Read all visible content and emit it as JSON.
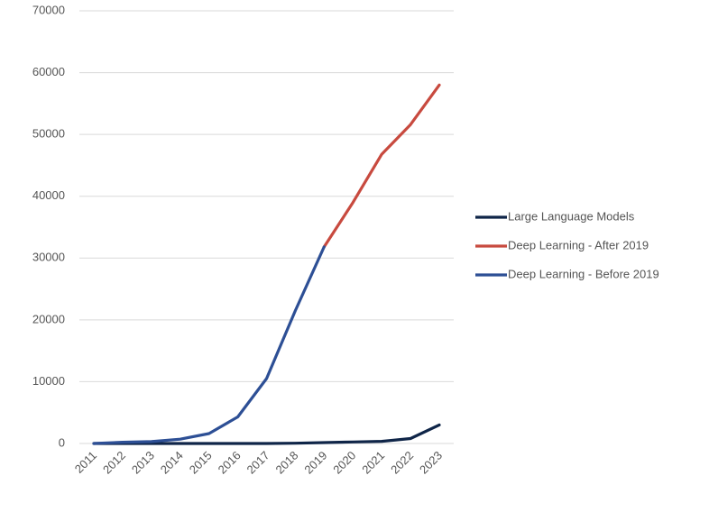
{
  "chart_data": {
    "type": "line",
    "title": "",
    "xlabel": "",
    "ylabel": "",
    "categories": [
      "2011",
      "2012",
      "2013",
      "2014",
      "2015",
      "2016",
      "2017",
      "2018",
      "2019",
      "2020",
      "2021",
      "2022",
      "2023"
    ],
    "ylim": [
      0,
      70000
    ],
    "yticks": [
      0,
      10000,
      20000,
      30000,
      40000,
      50000,
      60000,
      70000
    ],
    "grid": true,
    "legend_position": "right",
    "series": [
      {
        "name": "Large Language Models",
        "color": "#0f2548",
        "values": [
          0,
          0,
          0,
          0,
          0,
          0,
          0,
          50,
          150,
          250,
          350,
          800,
          3000
        ]
      },
      {
        "name": "Deep Learning - After 2019",
        "color": "#c84a3f",
        "values": [
          null,
          null,
          null,
          null,
          null,
          null,
          null,
          null,
          31800,
          39000,
          46800,
          51600,
          58000
        ]
      },
      {
        "name": "Deep Learning - Before 2019",
        "color": "#2d4f95",
        "values": [
          0,
          200,
          300,
          700,
          1600,
          4300,
          10500,
          21500,
          31800,
          null,
          null,
          null,
          null
        ]
      }
    ]
  }
}
